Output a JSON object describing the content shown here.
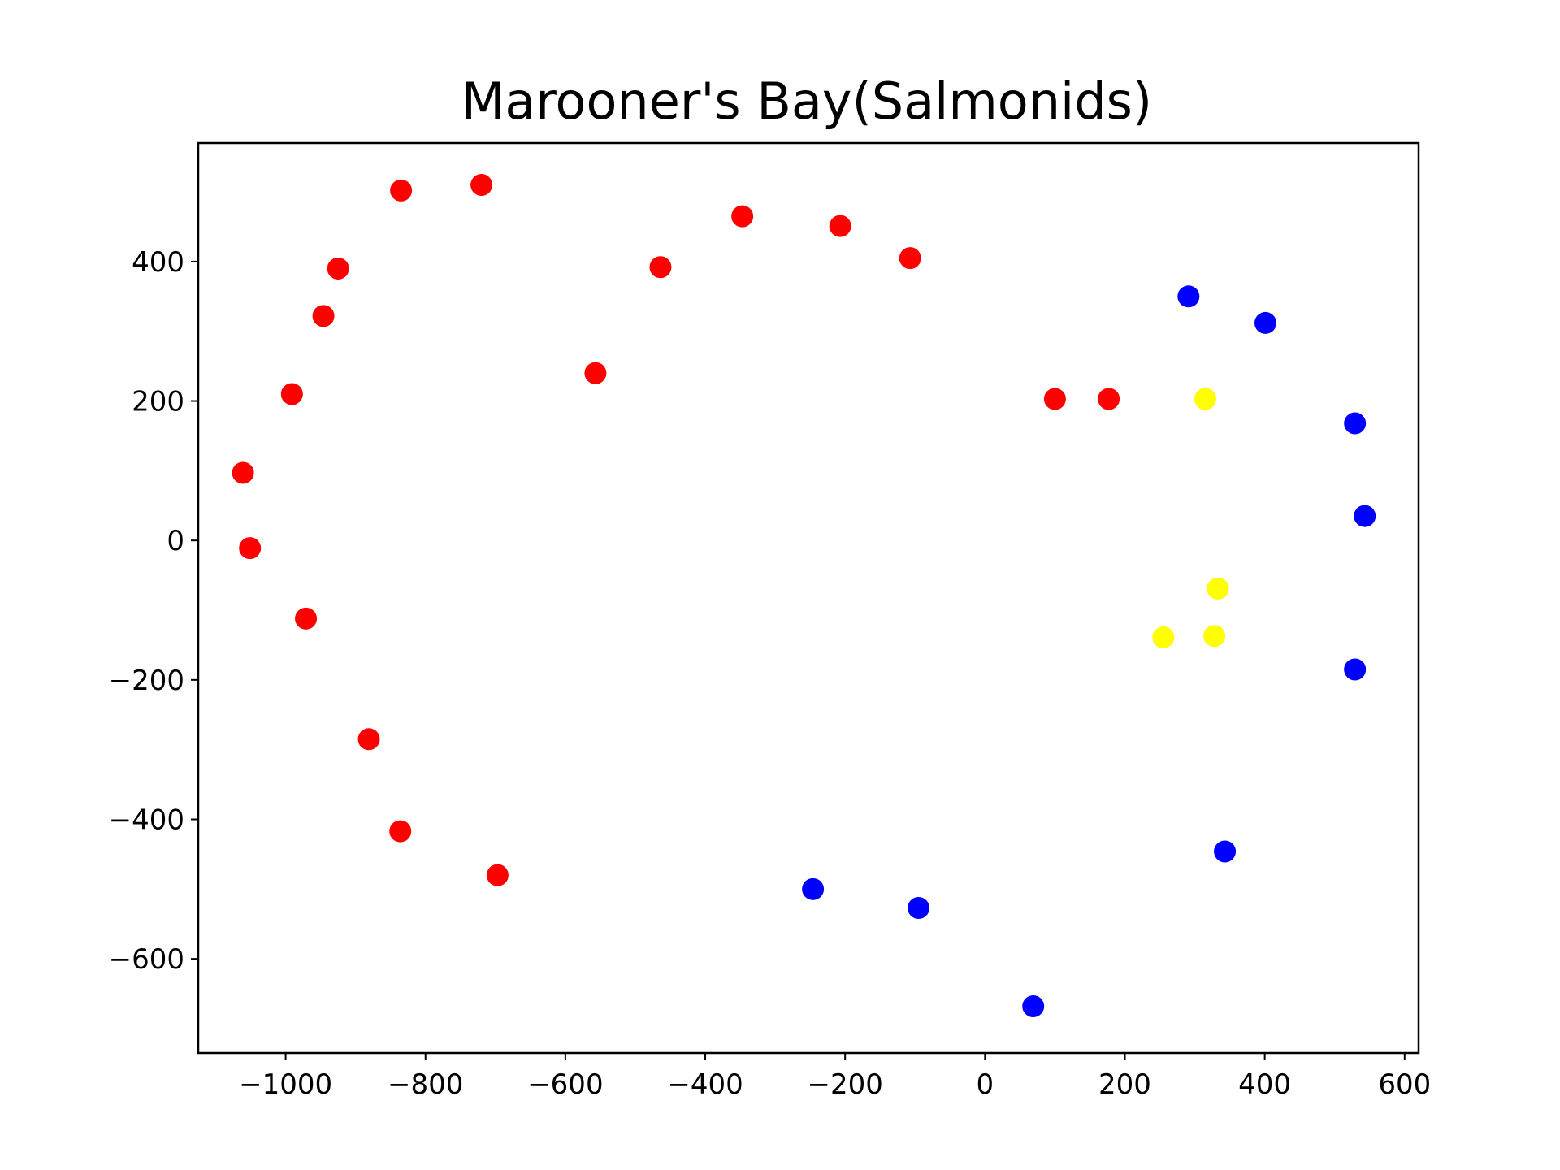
{
  "chart_data": {
    "type": "scatter",
    "title": "Marooner's Bay(Salmonids)",
    "xlabel": "",
    "ylabel": "",
    "xlim": [
      -1125,
      620
    ],
    "ylim": [
      -735,
      570
    ],
    "xticks": [
      -1000,
      -800,
      -600,
      -400,
      -200,
      0,
      200,
      400,
      600
    ],
    "xtick_labels": [
      "−1000",
      "−800",
      "−600",
      "−400",
      "−200",
      "0",
      "200",
      "400",
      "600"
    ],
    "yticks": [
      -600,
      -400,
      -200,
      0,
      200,
      400
    ],
    "ytick_labels": [
      "−600",
      "−400",
      "−200",
      "0",
      "200",
      "400"
    ],
    "grid": false,
    "legend": "none",
    "series": [
      {
        "color": "#ff0000",
        "points": [
          {
            "x": -720,
            "y": 510
          },
          {
            "x": -835,
            "y": 502
          },
          {
            "x": -347,
            "y": 465
          },
          {
            "x": -207,
            "y": 451
          },
          {
            "x": -107,
            "y": 405
          },
          {
            "x": -925,
            "y": 390
          },
          {
            "x": -464,
            "y": 392
          },
          {
            "x": -946,
            "y": 322
          },
          {
            "x": -557,
            "y": 240
          },
          {
            "x": -991,
            "y": 210
          },
          {
            "x": 100,
            "y": 203
          },
          {
            "x": 177,
            "y": 203
          },
          {
            "x": -1061,
            "y": 97
          },
          {
            "x": -1051,
            "y": -11
          },
          {
            "x": -971,
            "y": -112
          },
          {
            "x": -881,
            "y": -285
          },
          {
            "x": -836,
            "y": -417
          },
          {
            "x": -697,
            "y": -480
          }
        ]
      },
      {
        "color": "#0000ff",
        "points": [
          {
            "x": 291,
            "y": 350
          },
          {
            "x": 401,
            "y": 312
          },
          {
            "x": 529,
            "y": 168
          },
          {
            "x": 543,
            "y": 35
          },
          {
            "x": 529,
            "y": -185
          },
          {
            "x": 343,
            "y": -446
          },
          {
            "x": -246,
            "y": -500
          },
          {
            "x": -95,
            "y": -527
          },
          {
            "x": 69,
            "y": -668
          }
        ]
      },
      {
        "color": "#ffff00",
        "points": [
          {
            "x": 315,
            "y": 203
          },
          {
            "x": 333,
            "y": -69
          },
          {
            "x": 255,
            "y": -139
          },
          {
            "x": 328,
            "y": -137
          }
        ]
      }
    ]
  }
}
